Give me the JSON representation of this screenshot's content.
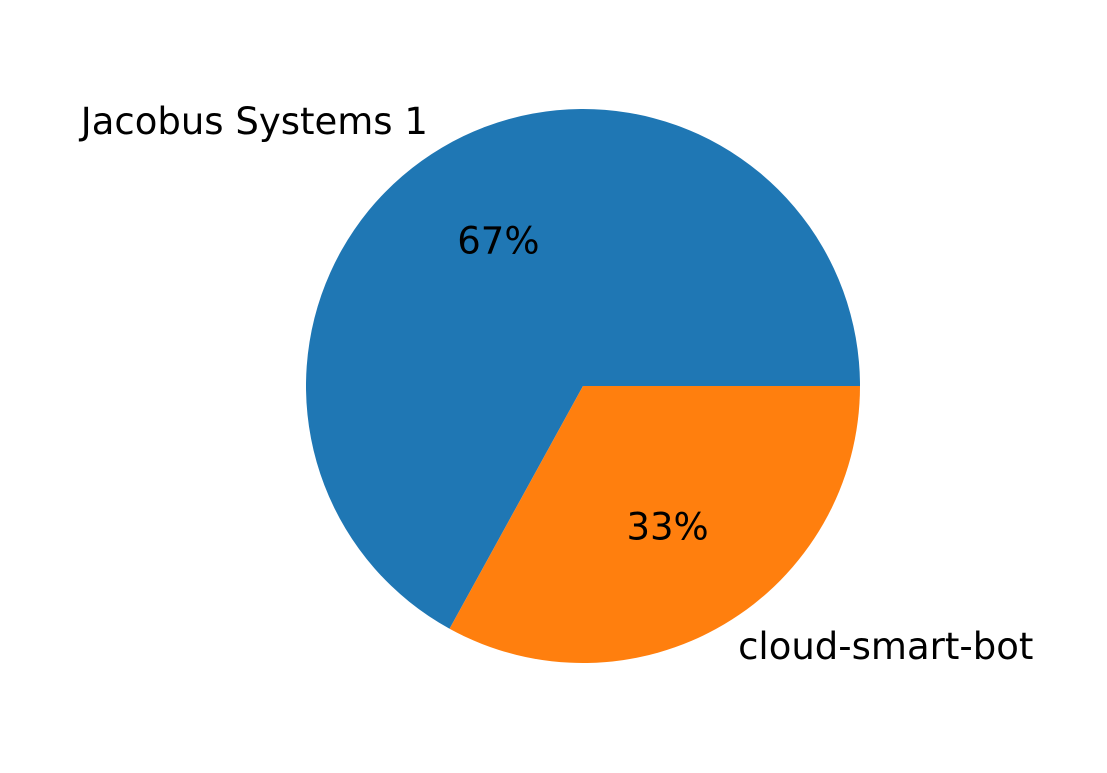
{
  "chart_data": {
    "type": "pie",
    "categories": [
      "Jacobus Systems 1",
      "cloud-smart-bot"
    ],
    "values": [
      67,
      33
    ],
    "value_labels": [
      "67%",
      "33%"
    ],
    "colors": [
      "#1f77b4",
      "#ff7f0e"
    ],
    "start_angle": 0
  }
}
